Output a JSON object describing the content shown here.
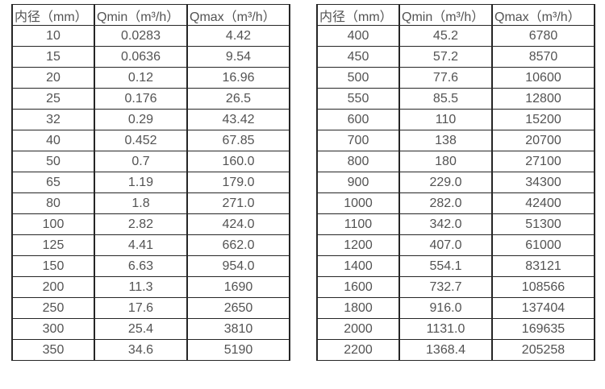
{
  "page": {
    "background": "#ffffff",
    "text_color": "#535353",
    "border_color": "#262626"
  },
  "tables": [
    {
      "name": "flow-table-small-diameters",
      "headers": [
        "内径（mm）",
        "Qmin（m³/h）",
        "Qmax（m³/h）"
      ],
      "rows": [
        [
          "10",
          "0.0283",
          "4.42"
        ],
        [
          "15",
          "0.0636",
          "9.54"
        ],
        [
          "20",
          "0.12",
          "16.96"
        ],
        [
          "25",
          "0.176",
          "26.5"
        ],
        [
          "32",
          "0.29",
          "43.42"
        ],
        [
          "40",
          "0.452",
          "67.85"
        ],
        [
          "50",
          "0.7",
          "160.0"
        ],
        [
          "65",
          "1.19",
          "179.0"
        ],
        [
          "80",
          "1.8",
          "271.0"
        ],
        [
          "100",
          "2.82",
          "424.0"
        ],
        [
          "125",
          "4.41",
          "662.0"
        ],
        [
          "150",
          "6.63",
          "954.0"
        ],
        [
          "200",
          "11.3",
          "1690"
        ],
        [
          "250",
          "17.6",
          "2650"
        ],
        [
          "300",
          "25.4",
          "3810"
        ],
        [
          "350",
          "34.6",
          "5190"
        ]
      ]
    },
    {
      "name": "flow-table-large-diameters",
      "headers": [
        "内径（mm）",
        "Qmin（m³/h）",
        "Qmax（m³/h）"
      ],
      "rows": [
        [
          "400",
          "45.2",
          "6780"
        ],
        [
          "450",
          "57.2",
          "8570"
        ],
        [
          "500",
          "77.6",
          "10600"
        ],
        [
          "550",
          "85.5",
          "12800"
        ],
        [
          "600",
          "110",
          "15200"
        ],
        [
          "700",
          "138",
          "20700"
        ],
        [
          "800",
          "180",
          "27100"
        ],
        [
          "900",
          "229.0",
          "34300"
        ],
        [
          "1000",
          "282.0",
          "42400"
        ],
        [
          "1100",
          "342.0",
          "51300"
        ],
        [
          "1200",
          "407.0",
          "61000"
        ],
        [
          "1400",
          "554.1",
          "83121"
        ],
        [
          "1600",
          "732.7",
          "108566"
        ],
        [
          "1800",
          "916.0",
          "137404"
        ],
        [
          "2000",
          "1131.0",
          "169635"
        ],
        [
          "2200",
          "1368.4",
          "205258"
        ]
      ]
    }
  ]
}
